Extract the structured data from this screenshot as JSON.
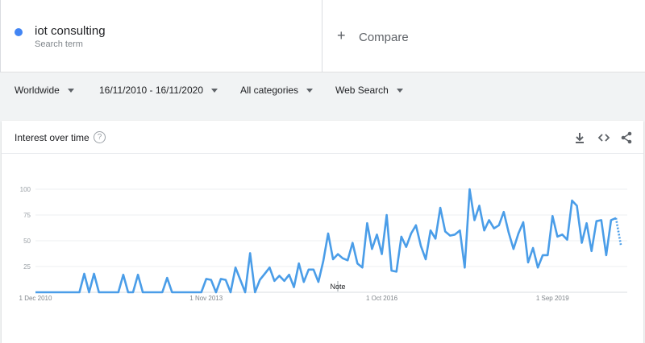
{
  "search_term": {
    "name": "iot consulting",
    "subtitle": "Search term",
    "color": "#4285f4"
  },
  "compare": {
    "icon": "plus-icon",
    "label": "Compare"
  },
  "filters": {
    "region": "Worldwide",
    "date_range": "16/11/2010 - 16/11/2020",
    "category": "All categories",
    "search_type": "Web Search"
  },
  "card": {
    "title": "Interest over time",
    "help_icon": "question-circle-icon",
    "help_glyph": "?",
    "tools": [
      "download-icon",
      "embed-code-icon",
      "share-icon"
    ]
  },
  "note": "Note",
  "chart_data": {
    "type": "line",
    "color": "#4a9de8",
    "yticks": [
      100,
      75,
      50,
      25
    ],
    "ylim": [
      0,
      100
    ],
    "grid": true,
    "xticks": [
      "1 Dec 2010",
      "1 Nov 2013",
      "1 Oct 2016",
      "1 Sep 2019"
    ],
    "xlabel": "",
    "ylabel": "",
    "series": [
      {
        "values": [
          0,
          0,
          0,
          0,
          0,
          0,
          0,
          0,
          0,
          0,
          18,
          0,
          18,
          0,
          0,
          0,
          0,
          0,
          17,
          0,
          0,
          17,
          0,
          0,
          0,
          0,
          0,
          14,
          0,
          0,
          0,
          0,
          0,
          0,
          0,
          13,
          12,
          0,
          13,
          12,
          0,
          24,
          12,
          0,
          38,
          0,
          12,
          18,
          24,
          11,
          16,
          11,
          17,
          5,
          28,
          10,
          22,
          22,
          10,
          30,
          57,
          32,
          37,
          33,
          31,
          48,
          28,
          24,
          67,
          42,
          56,
          37,
          75,
          21,
          20,
          54,
          44,
          57,
          65,
          45,
          32,
          60,
          52,
          82,
          59,
          55,
          56,
          60,
          24,
          100,
          70,
          84,
          60,
          70,
          62,
          65,
          78,
          58,
          42,
          57,
          68,
          29,
          43,
          24,
          36,
          36,
          74,
          54,
          56,
          51,
          89,
          84,
          48,
          67,
          40,
          69,
          70,
          36,
          70,
          72
        ],
        "partial_tail": [
          72,
          46
        ]
      }
    ]
  }
}
